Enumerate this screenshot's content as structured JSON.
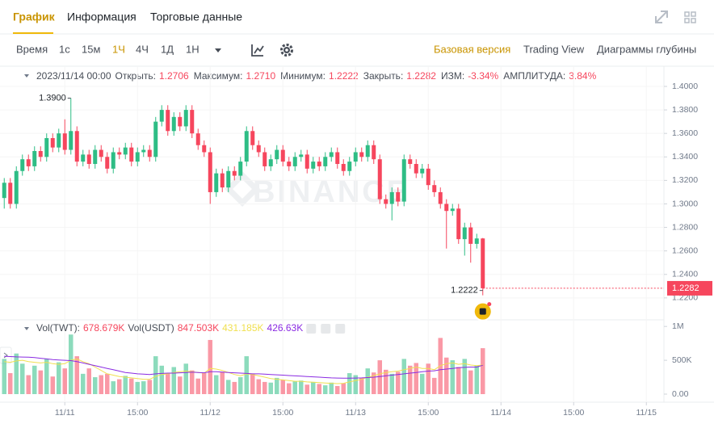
{
  "tabs": [
    "График",
    "Информация",
    "Торговые данные"
  ],
  "toolbar": {
    "time_label": "Время",
    "intervals": [
      "1с",
      "15м",
      "1Ч",
      "4Ч",
      "1Д",
      "1Н"
    ],
    "active": "1Ч",
    "views": [
      "Базовая версия",
      "Trading View",
      "Диаграммы глубины"
    ],
    "active_view": "Базовая версия"
  },
  "info": {
    "date": "2023/11/14 00:00",
    "items": [
      {
        "label": "Открыть:",
        "value": "1.2706"
      },
      {
        "label": "Максимум:",
        "value": "1.2710"
      },
      {
        "label": "Минимум:",
        "value": "1.2222"
      },
      {
        "label": "Закрыть:",
        "value": "1.2282"
      },
      {
        "label": "ИЗМ:",
        "value": "-3.34%"
      },
      {
        "label": "АМПЛИТУДА:",
        "value": "3.84%"
      }
    ]
  },
  "chart_data": [
    {
      "type": "candlestick",
      "watermark": "BINANCE",
      "up_color": "#2ebd85",
      "down_color": "#f6465d",
      "grid": true,
      "open": [
        1.305,
        1.318,
        1.3,
        1.328,
        1.338,
        1.332,
        1.345,
        1.34,
        1.356,
        1.348,
        1.36,
        1.346,
        1.362,
        1.336,
        1.342,
        1.334,
        1.346,
        1.34,
        1.33,
        1.344,
        1.342,
        1.348,
        1.336,
        1.344,
        1.346,
        1.34,
        1.37,
        1.38,
        1.362,
        1.374,
        1.366,
        1.38,
        1.36,
        1.35,
        1.344,
        1.31,
        1.326,
        1.314,
        1.328,
        1.324,
        1.336,
        1.362,
        1.35,
        1.344,
        1.332,
        1.338,
        1.346,
        1.336,
        1.332,
        1.34,
        1.342,
        1.33,
        1.336,
        1.332,
        1.34,
        1.344,
        1.334,
        1.328,
        1.336,
        1.344,
        1.34,
        1.35,
        1.338,
        1.304,
        1.3,
        1.31,
        1.302,
        1.338,
        1.334,
        1.326,
        1.33,
        1.316,
        1.31,
        1.3,
        1.294,
        1.296,
        1.27,
        1.28,
        1.266,
        1.2706
      ],
      "high": [
        1.322,
        1.322,
        1.332,
        1.342,
        1.342,
        1.349,
        1.349,
        1.36,
        1.36,
        1.364,
        1.372,
        1.39,
        1.366,
        1.346,
        1.346,
        1.35,
        1.35,
        1.344,
        1.348,
        1.348,
        1.352,
        1.352,
        1.348,
        1.35,
        1.35,
        1.374,
        1.384,
        1.384,
        1.378,
        1.378,
        1.384,
        1.384,
        1.364,
        1.354,
        1.348,
        1.33,
        1.33,
        1.332,
        1.332,
        1.34,
        1.366,
        1.366,
        1.354,
        1.348,
        1.342,
        1.35,
        1.35,
        1.34,
        1.344,
        1.346,
        1.346,
        1.34,
        1.34,
        1.344,
        1.348,
        1.348,
        1.338,
        1.34,
        1.348,
        1.348,
        1.354,
        1.354,
        1.342,
        1.308,
        1.314,
        1.314,
        1.342,
        1.342,
        1.338,
        1.334,
        1.334,
        1.32,
        1.314,
        1.304,
        1.3,
        1.3,
        1.284,
        1.284,
        1.2746,
        1.271
      ],
      "low": [
        1.296,
        1.296,
        1.296,
        1.324,
        1.328,
        1.328,
        1.336,
        1.336,
        1.344,
        1.344,
        1.342,
        1.342,
        1.332,
        1.332,
        1.33,
        1.33,
        1.336,
        1.326,
        1.326,
        1.338,
        1.338,
        1.332,
        1.332,
        1.34,
        1.336,
        1.336,
        1.366,
        1.358,
        1.358,
        1.362,
        1.362,
        1.356,
        1.346,
        1.34,
        1.3,
        1.306,
        1.31,
        1.31,
        1.32,
        1.32,
        1.332,
        1.346,
        1.34,
        1.328,
        1.328,
        1.334,
        1.332,
        1.328,
        1.328,
        1.336,
        1.326,
        1.326,
        1.328,
        1.328,
        1.336,
        1.33,
        1.324,
        1.324,
        1.332,
        1.336,
        1.336,
        1.334,
        1.3,
        1.296,
        1.286,
        1.298,
        1.298,
        1.33,
        1.322,
        1.322,
        1.312,
        1.306,
        1.296,
        1.262,
        1.29,
        1.266,
        1.256,
        1.25,
        1.262,
        1.2222
      ],
      "close": [
        1.318,
        1.3,
        1.328,
        1.338,
        1.332,
        1.345,
        1.34,
        1.356,
        1.348,
        1.36,
        1.346,
        1.362,
        1.336,
        1.342,
        1.334,
        1.346,
        1.34,
        1.33,
        1.344,
        1.342,
        1.348,
        1.336,
        1.344,
        1.346,
        1.34,
        1.37,
        1.38,
        1.362,
        1.374,
        1.366,
        1.38,
        1.36,
        1.35,
        1.344,
        1.31,
        1.326,
        1.314,
        1.328,
        1.324,
        1.336,
        1.362,
        1.35,
        1.344,
        1.332,
        1.338,
        1.346,
        1.336,
        1.332,
        1.34,
        1.342,
        1.33,
        1.336,
        1.332,
        1.34,
        1.344,
        1.334,
        1.328,
        1.336,
        1.344,
        1.34,
        1.35,
        1.338,
        1.304,
        1.3,
        1.31,
        1.302,
        1.338,
        1.334,
        1.326,
        1.33,
        1.316,
        1.31,
        1.3,
        1.294,
        1.296,
        1.27,
        1.28,
        1.266,
        1.2706,
        1.2282
      ],
      "annotations": {
        "high_label": "1.3900",
        "low_label": "1.2222",
        "last_price": "1.2282"
      },
      "xlim": [
        -0.7,
        108.9
      ],
      "ylim": [
        1.2041,
        1.4048
      ],
      "yticks": [
        {
          "value": 1.4,
          "label": "1.4000"
        },
        {
          "value": 1.38,
          "label": "1.3800"
        },
        {
          "value": 1.36,
          "label": "1.3600"
        },
        {
          "value": 1.34,
          "label": "1.3400"
        },
        {
          "value": 1.32,
          "label": "1.3200"
        },
        {
          "value": 1.3,
          "label": "1.3000"
        },
        {
          "value": 1.28,
          "label": "1.2800"
        },
        {
          "value": 1.26,
          "label": "1.2600"
        },
        {
          "value": 1.24,
          "label": "1.2400"
        },
        {
          "value": 1.22,
          "label": "1.2200"
        }
      ]
    },
    {
      "type": "bar",
      "grid": true,
      "legend": [
        {
          "text": "Vol(TWT):",
          "color": "#474d57"
        },
        {
          "text": "678.679K",
          "color": "#f6465d"
        },
        {
          "text": "Vol(USDT)",
          "color": "#474d57"
        },
        {
          "text": "847.503K",
          "color": "#f6465d"
        },
        {
          "text": "431.185K",
          "color": "#f0e050"
        },
        {
          "text": "426.63K",
          "color": "#8a2be2"
        }
      ],
      "values": [
        520000,
        310000,
        600000,
        450000,
        280000,
        420000,
        350000,
        520000,
        260000,
        470000,
        380000,
        880000,
        560000,
        300000,
        380000,
        250000,
        280000,
        300000,
        190000,
        220000,
        270000,
        230000,
        180000,
        190000,
        210000,
        560000,
        420000,
        300000,
        400000,
        260000,
        450000,
        350000,
        230000,
        310000,
        800000,
        280000,
        330000,
        210000,
        180000,
        250000,
        560000,
        300000,
        220000,
        180000,
        170000,
        240000,
        210000,
        160000,
        190000,
        200000,
        140000,
        180000,
        150000,
        130000,
        170000,
        120000,
        160000,
        310000,
        280000,
        240000,
        380000,
        320000,
        500000,
        360000,
        300000,
        330000,
        520000,
        420000,
        460000,
        300000,
        450000,
        240000,
        830000,
        540000,
        500000,
        400000,
        520000,
        350000,
        420000,
        678679
      ],
      "series": [
        {
          "color": "#f0e050",
          "values": [
            480000,
            470000,
            490000,
            500000,
            480000,
            470000,
            460000,
            470000,
            450000,
            440000,
            450000,
            500000,
            520000,
            480000,
            450000,
            400000,
            350000,
            300000,
            280000,
            260000,
            250000,
            240000,
            230000,
            220000,
            220000,
            260000,
            290000,
            300000,
            320000,
            330000,
            340000,
            330000,
            320000,
            310000,
            380000,
            370000,
            350000,
            320000,
            290000,
            270000,
            300000,
            290000,
            270000,
            250000,
            230000,
            220000,
            210000,
            200000,
            190000,
            190000,
            180000,
            175000,
            170000,
            165000,
            160000,
            155000,
            160000,
            180000,
            200000,
            220000,
            250000,
            270000,
            300000,
            320000,
            330000,
            340000,
            360000,
            380000,
            400000,
            380000,
            380000,
            360000,
            420000,
            450000,
            460000,
            440000,
            450000,
            430000,
            420000,
            431185
          ]
        },
        {
          "color": "#8a2be2",
          "values": [
            560000,
            555000,
            550000,
            548000,
            545000,
            540000,
            530000,
            520000,
            510000,
            505000,
            500000,
            495000,
            480000,
            460000,
            440000,
            420000,
            400000,
            380000,
            360000,
            340000,
            320000,
            310000,
            300000,
            295000,
            290000,
            300000,
            305000,
            310000,
            310000,
            315000,
            320000,
            325000,
            320000,
            315000,
            330000,
            330000,
            325000,
            320000,
            315000,
            310000,
            305000,
            300000,
            300000,
            295000,
            290000,
            285000,
            280000,
            275000,
            270000,
            265000,
            260000,
            255000,
            250000,
            245000,
            240000,
            238000,
            236000,
            235000,
            238000,
            240000,
            245000,
            250000,
            260000,
            270000,
            280000,
            290000,
            300000,
            310000,
            320000,
            330000,
            340000,
            345000,
            360000,
            370000,
            380000,
            390000,
            395000,
            400000,
            400000,
            426630
          ]
        }
      ],
      "xlim": [
        -0.7,
        108.9
      ],
      "ylim": [
        0,
        1050000
      ],
      "yticks": [
        {
          "value": 1000000,
          "label": "1M"
        },
        {
          "value": 500000,
          "label": "500K"
        },
        {
          "value": 0,
          "label": "0.00"
        }
      ],
      "xticks": [
        {
          "value": 10,
          "label": "11/11"
        },
        {
          "value": 22,
          "label": "15:00"
        },
        {
          "value": 34,
          "label": "11/12"
        },
        {
          "value": 46,
          "label": "15:00"
        },
        {
          "value": 58,
          "label": "11/13"
        },
        {
          "value": 70,
          "label": "15:00"
        },
        {
          "value": 82,
          "label": "11/14"
        },
        {
          "value": 94,
          "label": "15:00"
        },
        {
          "value": 106,
          "label": "11/15"
        }
      ]
    }
  ]
}
